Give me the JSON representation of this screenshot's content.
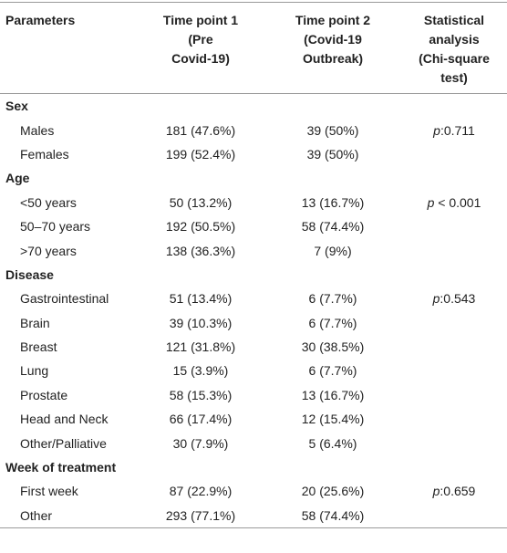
{
  "table": {
    "header": [
      [
        "Parameters"
      ],
      [
        "Time point 1",
        "(Pre",
        "Covid-19)"
      ],
      [
        "Time point 2",
        "(Covid-19",
        "Outbreak)"
      ],
      [
        "Statistical",
        "analysis",
        "(Chi-square",
        "test)"
      ]
    ],
    "sections": [
      {
        "title": "Sex",
        "rows": [
          [
            "Males",
            "181 (47.6%)",
            "39 (50%)",
            [
              "p",
              ":0.711"
            ]
          ],
          [
            "Females",
            "199 (52.4%)",
            "39 (50%)",
            null
          ]
        ]
      },
      {
        "title": "Age",
        "rows": [
          [
            "<50 years",
            "50 (13.2%)",
            "13 (16.7%)",
            [
              "p",
              " < 0.001"
            ]
          ],
          [
            "50–70 years",
            "192 (50.5%)",
            "58 (74.4%)",
            null
          ],
          [
            ">70 years",
            "138 (36.3%)",
            "7 (9%)",
            null
          ]
        ]
      },
      {
        "title": "Disease",
        "rows": [
          [
            "Gastrointestinal",
            "51 (13.4%)",
            "6 (7.7%)",
            [
              "p",
              ":0.543"
            ]
          ],
          [
            "Brain",
            "39 (10.3%)",
            "6 (7.7%)",
            null
          ],
          [
            "Breast",
            "121 (31.8%)",
            "30 (38.5%)",
            null
          ],
          [
            "Lung",
            "15 (3.9%)",
            "6 (7.7%)",
            null
          ],
          [
            "Prostate",
            "58 (15.3%)",
            "13 (16.7%)",
            null
          ],
          [
            "Head and Neck",
            "66 (17.4%)",
            "12 (15.4%)",
            null
          ],
          [
            "Other/Palliative",
            "30 (7.9%)",
            "5 (6.4%)",
            null
          ]
        ]
      },
      {
        "title": "Week of treatment",
        "rows": [
          [
            "First week",
            "87 (22.9%)",
            "20 (25.6%)",
            [
              "p",
              ":0.659"
            ]
          ],
          [
            "Other",
            "293 (77.1%)",
            "58 (74.4%)",
            null
          ]
        ]
      }
    ]
  }
}
